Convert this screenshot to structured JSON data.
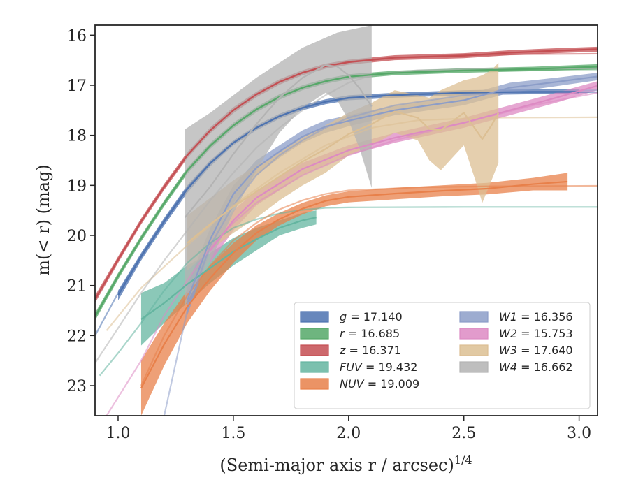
{
  "chart_data": {
    "type": "line",
    "xlabel": "(Semi-major axis r / arcsec)",
    "xlabel_sup": "1/4",
    "ylabel": "m(< r) (mag)",
    "xlim": [
      0.9,
      3.08
    ],
    "ylim": [
      23.6,
      15.8
    ],
    "y_inverted": true,
    "xticks": [
      "1.0",
      "1.5",
      "2.0",
      "2.5",
      "3.0"
    ],
    "yticks": [
      "16",
      "17",
      "18",
      "19",
      "20",
      "21",
      "22",
      "23"
    ],
    "grid": false,
    "legend_placement": "lower-right",
    "series": [
      {
        "name": "g = 17.140",
        "color": "#4c72b0",
        "model": [
          [
            0.9,
            22.0
          ],
          [
            1.0,
            21.15
          ],
          [
            1.1,
            20.4
          ],
          [
            1.2,
            19.7
          ],
          [
            1.3,
            19.05
          ],
          [
            1.4,
            18.55
          ],
          [
            1.5,
            18.15
          ],
          [
            1.6,
            17.85
          ],
          [
            1.7,
            17.62
          ],
          [
            1.8,
            17.45
          ],
          [
            1.9,
            17.33
          ],
          [
            2.0,
            17.26
          ],
          [
            2.2,
            17.19
          ],
          [
            2.5,
            17.15
          ],
          [
            2.8,
            17.14
          ],
          [
            3.08,
            17.14
          ]
        ],
        "band": [
          [
            1.0,
            21.1,
            21.3
          ],
          [
            1.1,
            20.35,
            20.5
          ],
          [
            1.2,
            19.65,
            19.8
          ],
          [
            1.3,
            19.0,
            19.15
          ],
          [
            1.4,
            18.5,
            18.62
          ],
          [
            1.5,
            18.1,
            18.2
          ],
          [
            1.6,
            17.8,
            17.9
          ],
          [
            1.7,
            17.57,
            17.67
          ],
          [
            1.8,
            17.4,
            17.5
          ],
          [
            1.9,
            17.28,
            17.38
          ],
          [
            2.0,
            17.2,
            17.3
          ],
          [
            2.2,
            17.15,
            17.25
          ],
          [
            2.5,
            17.1,
            17.2
          ],
          [
            2.8,
            17.08,
            17.18
          ],
          [
            3.0,
            17.08,
            17.18
          ]
        ]
      },
      {
        "name": "r = 16.685",
        "color": "#55a868",
        "model": [
          [
            0.9,
            21.62
          ],
          [
            1.0,
            20.8
          ],
          [
            1.1,
            20.05
          ],
          [
            1.2,
            19.35
          ],
          [
            1.3,
            18.7
          ],
          [
            1.4,
            18.2
          ],
          [
            1.5,
            17.8
          ],
          [
            1.6,
            17.48
          ],
          [
            1.7,
            17.23
          ],
          [
            1.8,
            17.05
          ],
          [
            1.9,
            16.92
          ],
          [
            2.0,
            16.83
          ],
          [
            2.2,
            16.75
          ],
          [
            2.5,
            16.7
          ],
          [
            2.8,
            16.69
          ],
          [
            3.08,
            16.685
          ]
        ],
        "band": [
          [
            0.9,
            21.55,
            21.7
          ],
          [
            1.0,
            20.75,
            20.88
          ],
          [
            1.1,
            20.0,
            20.12
          ],
          [
            1.2,
            19.3,
            19.42
          ],
          [
            1.3,
            18.65,
            18.77
          ],
          [
            1.4,
            18.15,
            18.27
          ],
          [
            1.5,
            17.75,
            17.86
          ],
          [
            1.6,
            17.43,
            17.54
          ],
          [
            1.7,
            17.18,
            17.29
          ],
          [
            1.8,
            17.0,
            17.1
          ],
          [
            1.9,
            16.87,
            16.97
          ],
          [
            2.0,
            16.78,
            16.88
          ],
          [
            2.2,
            16.71,
            16.8
          ],
          [
            2.5,
            16.66,
            16.75
          ],
          [
            2.8,
            16.63,
            16.72
          ],
          [
            3.08,
            16.58,
            16.68
          ]
        ]
      },
      {
        "name": "z = 16.371",
        "color": "#c44e52",
        "model": [
          [
            0.9,
            21.28
          ],
          [
            1.0,
            20.48
          ],
          [
            1.1,
            19.72
          ],
          [
            1.2,
            19.03
          ],
          [
            1.3,
            18.4
          ],
          [
            1.4,
            17.9
          ],
          [
            1.5,
            17.5
          ],
          [
            1.6,
            17.18
          ],
          [
            1.7,
            16.93
          ],
          [
            1.8,
            16.75
          ],
          [
            1.9,
            16.62
          ],
          [
            2.0,
            16.53
          ],
          [
            2.2,
            16.45
          ],
          [
            2.5,
            16.4
          ],
          [
            2.8,
            16.38
          ],
          [
            3.08,
            16.371
          ]
        ],
        "band": [
          [
            0.9,
            21.2,
            21.35
          ],
          [
            1.0,
            20.42,
            20.55
          ],
          [
            1.1,
            19.66,
            19.78
          ],
          [
            1.2,
            18.97,
            19.09
          ],
          [
            1.3,
            18.34,
            18.46
          ],
          [
            1.4,
            17.84,
            17.96
          ],
          [
            1.5,
            17.44,
            17.56
          ],
          [
            1.6,
            17.13,
            17.24
          ],
          [
            1.7,
            16.88,
            16.99
          ],
          [
            1.8,
            16.7,
            16.8
          ],
          [
            1.9,
            16.57,
            16.67
          ],
          [
            2.0,
            16.49,
            16.59
          ],
          [
            2.2,
            16.4,
            16.5
          ],
          [
            2.5,
            16.36,
            16.46
          ],
          [
            2.7,
            16.3,
            16.4
          ],
          [
            2.9,
            16.26,
            16.36
          ],
          [
            3.08,
            16.23,
            16.33
          ]
        ]
      },
      {
        "name": "FUV = 19.432",
        "color": "#64b5a0",
        "model": [
          [
            0.92,
            22.8
          ],
          [
            1.0,
            22.35
          ],
          [
            1.1,
            21.75
          ],
          [
            1.2,
            21.1
          ],
          [
            1.3,
            20.55
          ],
          [
            1.4,
            20.15
          ],
          [
            1.5,
            19.85
          ],
          [
            1.6,
            19.68
          ],
          [
            1.7,
            19.56
          ],
          [
            1.8,
            19.49
          ],
          [
            1.9,
            19.45
          ],
          [
            2.0,
            19.44
          ],
          [
            2.5,
            19.432
          ],
          [
            3.08,
            19.432
          ]
        ],
        "band": [
          [
            1.1,
            21.15,
            22.2
          ],
          [
            1.2,
            20.95,
            21.75
          ],
          [
            1.3,
            20.6,
            21.35
          ],
          [
            1.4,
            20.35,
            20.95
          ],
          [
            1.5,
            20.05,
            20.6
          ],
          [
            1.6,
            19.85,
            20.3
          ],
          [
            1.7,
            19.7,
            20.0
          ],
          [
            1.8,
            19.55,
            19.85
          ],
          [
            1.86,
            19.5,
            19.78
          ]
        ]
      },
      {
        "name": "NUV = 19.009",
        "color": "#e8804a",
        "model": [
          [
            1.1,
            23.0
          ],
          [
            1.2,
            22.0
          ],
          [
            1.3,
            21.2
          ],
          [
            1.4,
            20.6
          ],
          [
            1.5,
            20.1
          ],
          [
            1.6,
            19.75
          ],
          [
            1.7,
            19.48
          ],
          [
            1.8,
            19.3
          ],
          [
            1.9,
            19.17
          ],
          [
            2.0,
            19.1
          ],
          [
            2.3,
            19.04
          ],
          [
            2.6,
            19.02
          ],
          [
            3.08,
            19.009
          ]
        ],
        "band": [
          [
            1.1,
            22.5,
            23.6
          ],
          [
            1.2,
            21.75,
            22.6
          ],
          [
            1.3,
            21.1,
            21.75
          ],
          [
            1.4,
            20.6,
            21.1
          ],
          [
            1.5,
            20.15,
            20.55
          ],
          [
            1.6,
            19.8,
            20.1
          ],
          [
            1.7,
            19.55,
            19.8
          ],
          [
            1.8,
            19.35,
            19.58
          ],
          [
            1.9,
            19.2,
            19.42
          ],
          [
            2.0,
            19.12,
            19.34
          ],
          [
            2.2,
            19.05,
            19.28
          ],
          [
            2.4,
            19.0,
            19.22
          ],
          [
            2.6,
            18.95,
            19.18
          ],
          [
            2.8,
            18.85,
            19.1
          ],
          [
            2.95,
            18.75,
            19.1
          ]
        ]
      },
      {
        "name": "W1 = 16.356",
        "color": "#8c9dc8",
        "model": [
          [
            1.2,
            23.6
          ],
          [
            1.3,
            21.5
          ],
          [
            1.4,
            20.2
          ],
          [
            1.5,
            19.4
          ],
          [
            1.6,
            18.8
          ],
          [
            1.7,
            18.4
          ],
          [
            1.8,
            18.1
          ],
          [
            1.9,
            17.85
          ],
          [
            2.0,
            17.65
          ],
          [
            2.2,
            17.4
          ],
          [
            2.5,
            17.2
          ],
          [
            2.8,
            17.12
          ],
          [
            3.08,
            17.1
          ]
        ],
        "band": [
          [
            1.3,
            21.0,
            21.6
          ],
          [
            1.4,
            19.85,
            20.3
          ],
          [
            1.5,
            19.0,
            19.35
          ],
          [
            1.6,
            18.5,
            18.8
          ],
          [
            1.7,
            18.2,
            18.45
          ],
          [
            1.8,
            17.9,
            18.15
          ],
          [
            1.9,
            17.7,
            17.95
          ],
          [
            2.0,
            17.6,
            17.82
          ],
          [
            2.2,
            17.4,
            17.6
          ],
          [
            2.5,
            17.2,
            17.4
          ],
          [
            2.7,
            16.95,
            17.15
          ],
          [
            2.9,
            16.85,
            17.02
          ],
          [
            3.08,
            16.75,
            16.9
          ]
        ]
      },
      {
        "name": "W2 = 15.753",
        "color": "#dd8ac3",
        "model": [
          [
            0.95,
            23.6
          ],
          [
            1.1,
            22.5
          ],
          [
            1.2,
            21.6
          ],
          [
            1.3,
            20.9
          ],
          [
            1.4,
            20.25
          ],
          [
            1.5,
            19.75
          ],
          [
            1.6,
            19.35
          ],
          [
            1.8,
            18.8
          ],
          [
            2.0,
            18.4
          ],
          [
            2.2,
            18.1
          ],
          [
            2.5,
            17.75
          ],
          [
            2.8,
            17.4
          ],
          [
            3.08,
            17.15
          ]
        ],
        "band": [
          [
            1.4,
            20.05,
            20.55
          ],
          [
            1.5,
            19.5,
            19.9
          ],
          [
            1.6,
            19.1,
            19.4
          ],
          [
            1.8,
            18.55,
            18.8
          ],
          [
            2.0,
            18.2,
            18.4
          ],
          [
            2.2,
            17.95,
            18.15
          ],
          [
            2.5,
            17.65,
            17.85
          ],
          [
            2.7,
            17.4,
            17.6
          ],
          [
            2.9,
            17.15,
            17.35
          ],
          [
            3.08,
            16.92,
            17.1
          ]
        ]
      },
      {
        "name": "W3 = 17.640",
        "color": "#dcbf93",
        "model": [
          [
            0.95,
            21.9
          ],
          [
            1.1,
            21.05
          ],
          [
            1.3,
            20.2
          ],
          [
            1.5,
            19.4
          ],
          [
            1.7,
            18.75
          ],
          [
            1.9,
            18.2
          ],
          [
            2.1,
            17.85
          ],
          [
            2.3,
            17.7
          ],
          [
            2.6,
            17.65
          ],
          [
            3.08,
            17.64
          ]
        ],
        "band": [
          [
            1.3,
            19.6,
            20.7
          ],
          [
            1.4,
            19.25,
            20.3
          ],
          [
            1.5,
            18.9,
            19.95
          ],
          [
            1.6,
            18.6,
            19.65
          ],
          [
            1.7,
            18.35,
            19.3
          ],
          [
            1.8,
            18.05,
            19.0
          ],
          [
            1.9,
            17.8,
            18.75
          ],
          [
            2.0,
            17.55,
            18.4
          ],
          [
            2.1,
            17.35,
            18.2
          ],
          [
            2.2,
            17.1,
            17.95
          ],
          [
            2.3,
            17.2,
            18.1
          ],
          [
            2.35,
            17.25,
            18.5
          ],
          [
            2.4,
            17.1,
            18.7
          ],
          [
            2.45,
            17.0,
            18.45
          ],
          [
            2.5,
            16.9,
            18.2
          ],
          [
            2.55,
            16.85,
            18.9
          ],
          [
            2.58,
            16.8,
            19.35
          ],
          [
            2.62,
            16.7,
            18.9
          ],
          [
            2.65,
            16.55,
            18.55
          ]
        ]
      },
      {
        "name": "W4 = 16.662",
        "color": "#b3b3b3",
        "model": [
          [
            0.9,
            22.55
          ],
          [
            1.0,
            21.85
          ],
          [
            1.1,
            21.15
          ],
          [
            1.2,
            20.5
          ],
          [
            1.3,
            19.9
          ],
          [
            1.4,
            19.3
          ],
          [
            1.5,
            18.75
          ],
          [
            1.6,
            18.25
          ],
          [
            1.7,
            17.85
          ],
          [
            1.8,
            17.5
          ],
          [
            1.9,
            17.2
          ],
          [
            2.0,
            16.95
          ],
          [
            2.1,
            16.8
          ],
          [
            2.3,
            16.7
          ],
          [
            2.6,
            16.67
          ],
          [
            3.08,
            16.662
          ]
        ],
        "band": [
          [
            1.29,
            17.88,
            21.4
          ],
          [
            1.4,
            17.55,
            20.5
          ],
          [
            1.5,
            17.2,
            19.55
          ],
          [
            1.6,
            16.85,
            18.7
          ],
          [
            1.7,
            16.55,
            17.95
          ],
          [
            1.8,
            16.25,
            17.45
          ],
          [
            1.9,
            16.05,
            17.15
          ],
          [
            1.95,
            15.95,
            17.3
          ],
          [
            2.0,
            15.9,
            17.7
          ],
          [
            2.05,
            15.85,
            18.3
          ],
          [
            2.1,
            15.8,
            19.05
          ]
        ]
      }
    ]
  }
}
